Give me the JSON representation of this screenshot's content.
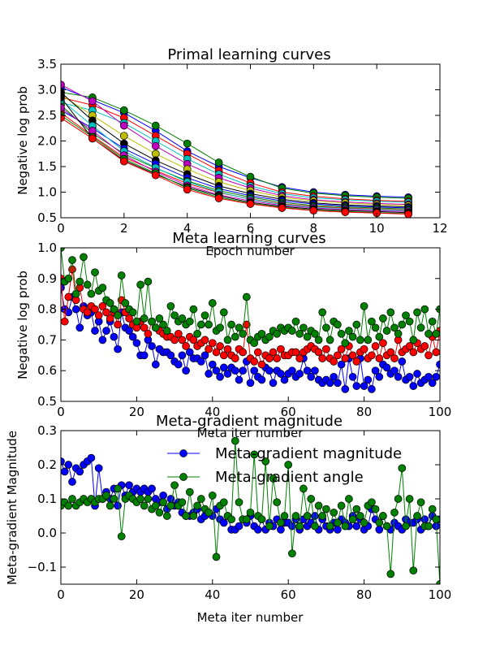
{
  "figure": {
    "background": "#ffffff"
  },
  "chart_data": [
    {
      "type": "line",
      "title": "Primal learning curves",
      "xlabel": "Epoch number",
      "ylabel": "Negative log prob",
      "xlim": [
        0,
        12
      ],
      "ylim": [
        0.5,
        3.5
      ],
      "xticks": [
        0,
        2,
        4,
        6,
        8,
        10,
        12
      ],
      "yticks": [
        0.5,
        1.0,
        1.5,
        2.0,
        2.5,
        3.0,
        3.5
      ],
      "xtick_labels": [
        "0",
        "2",
        "4",
        "6",
        "8",
        "10",
        "12"
      ],
      "ytick_labels": [
        "0.5",
        "1.0",
        "1.5",
        "2.0",
        "2.5",
        "3.0",
        "3.5"
      ],
      "grid": false,
      "legend": false,
      "marker": "circle",
      "x": [
        0,
        1,
        2,
        3,
        4,
        5,
        6,
        7,
        8,
        9,
        10,
        11
      ],
      "series": [
        {
          "color": "#0000ff",
          "values": [
            3.05,
            2.8,
            2.55,
            2.2,
            1.8,
            1.5,
            1.28,
            1.1,
            1.0,
            0.95,
            0.92,
            0.9
          ]
        },
        {
          "color": "#008000",
          "values": [
            2.95,
            2.85,
            2.6,
            2.3,
            1.95,
            1.58,
            1.3,
            1.08,
            0.98,
            0.93,
            0.9,
            0.88
          ]
        },
        {
          "color": "#ff0000",
          "values": [
            2.85,
            2.7,
            2.45,
            2.1,
            1.75,
            1.42,
            1.18,
            1.0,
            0.92,
            0.87,
            0.84,
            0.82
          ]
        },
        {
          "color": "#00bfbf",
          "values": [
            2.75,
            2.6,
            2.35,
            2.0,
            1.65,
            1.35,
            1.12,
            0.97,
            0.89,
            0.85,
            0.82,
            0.8
          ]
        },
        {
          "color": "#bf00bf",
          "values": [
            3.1,
            2.78,
            2.3,
            1.9,
            1.55,
            1.28,
            1.08,
            0.93,
            0.85,
            0.81,
            0.78,
            0.76
          ]
        },
        {
          "color": "#bfbf00",
          "values": [
            2.9,
            2.5,
            2.1,
            1.75,
            1.45,
            1.2,
            1.03,
            0.9,
            0.83,
            0.79,
            0.76,
            0.74
          ]
        },
        {
          "color": "#000000",
          "values": [
            2.95,
            2.4,
            1.95,
            1.62,
            1.35,
            1.12,
            0.97,
            0.86,
            0.79,
            0.75,
            0.73,
            0.71
          ]
        },
        {
          "color": "#0000ff",
          "values": [
            2.6,
            2.25,
            1.85,
            1.55,
            1.28,
            1.07,
            0.93,
            0.83,
            0.77,
            0.73,
            0.71,
            0.69
          ]
        },
        {
          "color": "#008000",
          "values": [
            2.7,
            2.15,
            1.75,
            1.47,
            1.22,
            1.03,
            0.9,
            0.8,
            0.74,
            0.71,
            0.69,
            0.67
          ]
        },
        {
          "color": "#ff0000",
          "values": [
            2.55,
            2.1,
            1.68,
            1.42,
            1.17,
            0.99,
            0.87,
            0.77,
            0.72,
            0.69,
            0.67,
            0.65
          ]
        },
        {
          "color": "#00bfbf",
          "values": [
            2.8,
            2.3,
            1.8,
            1.48,
            1.2,
            1.0,
            0.86,
            0.76,
            0.71,
            0.68,
            0.66,
            0.64
          ]
        },
        {
          "color": "#bf00bf",
          "values": [
            2.65,
            2.2,
            1.72,
            1.4,
            1.13,
            0.95,
            0.83,
            0.74,
            0.69,
            0.66,
            0.64,
            0.62
          ]
        },
        {
          "color": "#000000",
          "values": [
            2.85,
            2.05,
            1.62,
            1.35,
            1.1,
            0.93,
            0.8,
            0.72,
            0.67,
            0.64,
            0.62,
            0.6
          ]
        },
        {
          "color": "#008000",
          "values": [
            2.5,
            2.08,
            1.65,
            1.37,
            1.08,
            0.9,
            0.78,
            0.7,
            0.65,
            0.62,
            0.6,
            0.58
          ]
        },
        {
          "color": "#ff0000",
          "values": [
            2.45,
            2.05,
            1.6,
            1.33,
            1.05,
            0.88,
            0.77,
            0.69,
            0.64,
            0.61,
            0.59,
            0.57
          ]
        }
      ]
    },
    {
      "type": "line",
      "title": "Meta learning curves",
      "xlabel": "Meta iter number",
      "ylabel": "Negative log prob",
      "xlim": [
        0,
        100
      ],
      "ylim": [
        0.5,
        1.0
      ],
      "xticks": [
        0,
        20,
        40,
        60,
        80,
        100
      ],
      "yticks": [
        0.5,
        0.6,
        0.7,
        0.8,
        0.9,
        1.0
      ],
      "xtick_labels": [
        "0",
        "20",
        "40",
        "60",
        "80",
        "100"
      ],
      "ytick_labels": [
        "0.5",
        "0.6",
        "0.7",
        "0.8",
        "0.9",
        "1.0"
      ],
      "grid": false,
      "legend": false,
      "marker": "circle",
      "series": [
        {
          "color": "#0000ff",
          "values": [
            0.87,
            0.8,
            0.79,
            0.84,
            0.8,
            0.74,
            0.81,
            0.78,
            0.79,
            0.73,
            0.76,
            0.7,
            0.73,
            0.76,
            0.71,
            0.67,
            0.79,
            0.74,
            0.73,
            0.71,
            0.69,
            0.65,
            0.65,
            0.7,
            0.68,
            0.62,
            0.67,
            0.66,
            0.66,
            0.65,
            0.63,
            0.62,
            0.65,
            0.6,
            0.66,
            0.64,
            0.64,
            0.63,
            0.65,
            0.59,
            0.62,
            0.6,
            0.58,
            0.61,
            0.59,
            0.61,
            0.6,
            0.57,
            0.6,
            0.63,
            0.56,
            0.6,
            0.58,
            0.57,
            0.61,
            0.6,
            0.56,
            0.6,
            0.59,
            0.57,
            0.59,
            0.6,
            0.58,
            0.59,
            0.64,
            0.6,
            0.58,
            0.6,
            0.57,
            0.56,
            0.57,
            0.56,
            0.58,
            0.56,
            0.62,
            0.54,
            0.64,
            0.58,
            0.55,
            0.64,
            0.55,
            0.57,
            0.54,
            0.6,
            0.58,
            0.62,
            0.61,
            0.59,
            0.6,
            0.58,
            0.63,
            0.57,
            0.58,
            0.55,
            0.59,
            0.56,
            0.57,
            0.58,
            0.56,
            0.58,
            0.62
          ]
        },
        {
          "color": "#ff0000",
          "values": [
            0.9,
            0.76,
            0.84,
            0.93,
            0.83,
            0.87,
            0.8,
            0.79,
            0.81,
            0.8,
            0.78,
            0.81,
            0.79,
            0.77,
            0.79,
            0.75,
            0.83,
            0.79,
            0.77,
            0.75,
            0.74,
            0.76,
            0.74,
            0.72,
            0.76,
            0.74,
            0.73,
            0.72,
            0.71,
            0.71,
            0.7,
            0.72,
            0.7,
            0.68,
            0.71,
            0.7,
            0.68,
            0.69,
            0.7,
            0.67,
            0.69,
            0.66,
            0.68,
            0.65,
            0.67,
            0.65,
            0.64,
            0.67,
            0.66,
            0.75,
            0.64,
            0.63,
            0.66,
            0.62,
            0.65,
            0.64,
            0.66,
            0.64,
            0.67,
            0.65,
            0.65,
            0.66,
            0.66,
            0.64,
            0.66,
            0.67,
            0.68,
            0.67,
            0.66,
            0.64,
            0.67,
            0.64,
            0.63,
            0.65,
            0.67,
            0.64,
            0.68,
            0.65,
            0.63,
            0.66,
            0.67,
            0.64,
            0.65,
            0.68,
            0.64,
            0.69,
            0.65,
            0.66,
            0.64,
            0.7,
            0.66,
            0.67,
            0.68,
            0.66,
            0.69,
            0.67,
            0.68,
            0.65,
            0.71,
            0.66,
            0.73
          ]
        },
        {
          "color": "#008000",
          "values": [
            1.0,
            0.89,
            0.9,
            0.96,
            0.85,
            0.89,
            0.97,
            0.88,
            0.85,
            0.92,
            0.86,
            0.87,
            0.83,
            0.82,
            0.8,
            0.78,
            0.91,
            0.82,
            0.8,
            0.79,
            0.76,
            0.88,
            0.77,
            0.89,
            0.76,
            0.74,
            0.77,
            0.75,
            0.73,
            0.81,
            0.78,
            0.76,
            0.77,
            0.75,
            0.76,
            0.8,
            0.72,
            0.75,
            0.78,
            0.75,
            0.82,
            0.73,
            0.74,
            0.79,
            0.7,
            0.75,
            0.71,
            0.74,
            0.72,
            0.84,
            0.7,
            0.69,
            0.71,
            0.72,
            0.7,
            0.71,
            0.73,
            0.72,
            0.74,
            0.73,
            0.74,
            0.73,
            0.76,
            0.72,
            0.74,
            0.71,
            0.73,
            0.72,
            0.7,
            0.79,
            0.74,
            0.7,
            0.76,
            0.75,
            0.72,
            0.69,
            0.73,
            0.71,
            0.75,
            0.7,
            0.81,
            0.7,
            0.76,
            0.74,
            0.71,
            0.77,
            0.73,
            0.79,
            0.74,
            0.72,
            0.75,
            0.78,
            0.76,
            0.7,
            0.79,
            0.74,
            0.8,
            0.72,
            0.76,
            0.72,
            0.8
          ]
        }
      ]
    },
    {
      "type": "line",
      "title": "Meta-gradient magnitude",
      "xlabel": "Meta iter number",
      "ylabel": "Meta-gradient Magnitude",
      "xlim": [
        0,
        100
      ],
      "ylim": [
        -0.15,
        0.3
      ],
      "xticks": [
        0,
        20,
        40,
        60,
        80,
        100
      ],
      "yticks": [
        -0.1,
        0.0,
        0.1,
        0.2,
        0.3
      ],
      "xtick_labels": [
        "0",
        "20",
        "40",
        "60",
        "80",
        "100"
      ],
      "ytick_labels": [
        "−0.1",
        "0.0",
        "0.1",
        "0.2",
        "0.3"
      ],
      "grid": false,
      "legend": "top-right",
      "marker": "circle",
      "series": [
        {
          "name": "Meta-gradient magnitude",
          "color": "#0000ff",
          "values": [
            0.21,
            0.18,
            0.2,
            0.15,
            0.19,
            0.18,
            0.2,
            0.21,
            0.22,
            0.08,
            0.19,
            0.1,
            0.12,
            0.1,
            0.13,
            0.08,
            0.14,
            0.11,
            0.14,
            0.12,
            0.13,
            0.12,
            0.13,
            0.12,
            0.13,
            0.1,
            0.09,
            0.11,
            0.07,
            0.1,
            0.08,
            0.09,
            0.06,
            0.05,
            0.05,
            0.06,
            0.07,
            0.04,
            0.05,
            0.06,
            0.05,
            0.07,
            0.04,
            0.03,
            0.05,
            0.01,
            0.01,
            0.02,
            0.04,
            0.03,
            0.05,
            0.02,
            0.01,
            0.04,
            0.01,
            0.03,
            0.02,
            0.04,
            0.01,
            0.03,
            0.03,
            0.02,
            0.04,
            0.01,
            0.04,
            0.02,
            0.03,
            0.05,
            0.01,
            0.04,
            0.02,
            0.01,
            0.03,
            0.01,
            0.04,
            0.03,
            0.02,
            0.05,
            0.02,
            0.04,
            0.01,
            0.02,
            0.07,
            0.04,
            0.01,
            0.05,
            0.02,
            0.01,
            0.03,
            0.02,
            0.01,
            0.04,
            0.03,
            0.03,
            0.04,
            0.01,
            0.04,
            0.02,
            0.05,
            0.02,
            0.04
          ]
        },
        {
          "name": "Meta-gradient angle",
          "color": "#008000",
          "values": [
            0.08,
            0.09,
            0.08,
            0.1,
            0.08,
            0.09,
            0.1,
            0.09,
            0.1,
            0.09,
            0.1,
            0.1,
            0.11,
            0.08,
            0.1,
            0.13,
            -0.01,
            0.1,
            0.11,
            0.1,
            0.09,
            0.1,
            0.08,
            0.1,
            0.07,
            0.08,
            0.06,
            0.09,
            0.05,
            0.08,
            0.14,
            0.08,
            0.09,
            0.05,
            0.12,
            0.05,
            0.08,
            0.1,
            0.07,
            0.06,
            0.11,
            -0.07,
            0.08,
            0.09,
            0.05,
            0.04,
            0.27,
            0.09,
            0.04,
            0.04,
            0.06,
            0.23,
            0.05,
            0.04,
            0.21,
            0.02,
            0.16,
            0.09,
            0.03,
            0.05,
            0.2,
            -0.06,
            0.05,
            0.02,
            0.13,
            0.05,
            0.1,
            0.02,
            0.08,
            0.05,
            0.07,
            0.02,
            0.06,
            0.03,
            0.08,
            0.02,
            0.1,
            0.04,
            0.07,
            0.05,
            0.03,
            0.08,
            0.09,
            0.07,
            0.03,
            0.05,
            0.02,
            -0.12,
            0.06,
            0.1,
            0.19,
            0.02,
            0.1,
            -0.11,
            0.05,
            0.09,
            0.02,
            0.02,
            0.07,
            0.04,
            -0.15
          ]
        }
      ]
    }
  ]
}
